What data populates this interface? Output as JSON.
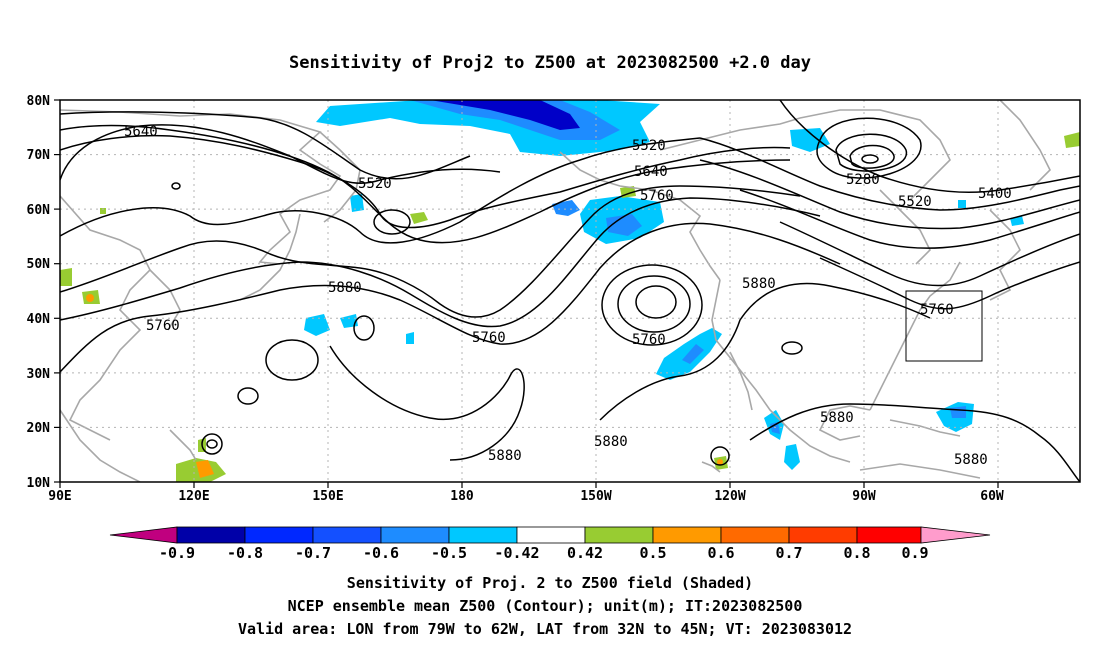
{
  "map": {
    "title": "Sensitivity of Proj2 to Z500 at 2023082500 +2.0 day",
    "lat_labels": [
      "80N",
      "70N",
      "60N",
      "50N",
      "40N",
      "30N",
      "20N",
      "10N"
    ],
    "lon_labels": [
      "90E",
      "120E",
      "150E",
      "180",
      "150W",
      "120W",
      "90W",
      "60W"
    ],
    "contour_labels": [
      "5640",
      "5520",
      "5520",
      "5640",
      "5760",
      "5280",
      "5520",
      "5400",
      "5880",
      "5760",
      "5760",
      "5760",
      "5880",
      "5760",
      "5880",
      "5880",
      "5880",
      "5880"
    ],
    "valid_area": {
      "lon_from": "79W",
      "lon_to": "62W",
      "lat_from": "32N",
      "lat_to": "45N"
    }
  },
  "colorbar": {
    "tick_labels": [
      "-0.9",
      "-0.8",
      "-0.7",
      "-0.6",
      "-0.5",
      "-0.42",
      "0.42",
      "0.5",
      "0.6",
      "0.7",
      "0.8",
      "0.9"
    ],
    "colors": [
      "#c0007f",
      "#0000a8",
      "#0028ff",
      "#1450ff",
      "#1e8cff",
      "#00c8ff",
      "#ffffff",
      "#98cc32",
      "#ff9a00",
      "#ff6a00",
      "#ff3c00",
      "#ff0000",
      "#ff9ccc"
    ]
  },
  "footer": {
    "line1": "Sensitivity of Proj. 2 to Z500 field (Shaded)",
    "line2": "NCEP ensemble mean Z500 (Contour); unit(m); IT:2023082500",
    "line3": "Valid area: LON from 79W to 62W, LAT from 32N to 45N; VT: 2023083012"
  },
  "shading": {
    "blue_dark": "#0000c8",
    "blue_mid": "#1450ff",
    "blue_light": "#1e8cff",
    "cyan": "#00c8ff",
    "green": "#98cc32",
    "orange": "#ff9a00",
    "coast_color": "#a8a8a8"
  }
}
